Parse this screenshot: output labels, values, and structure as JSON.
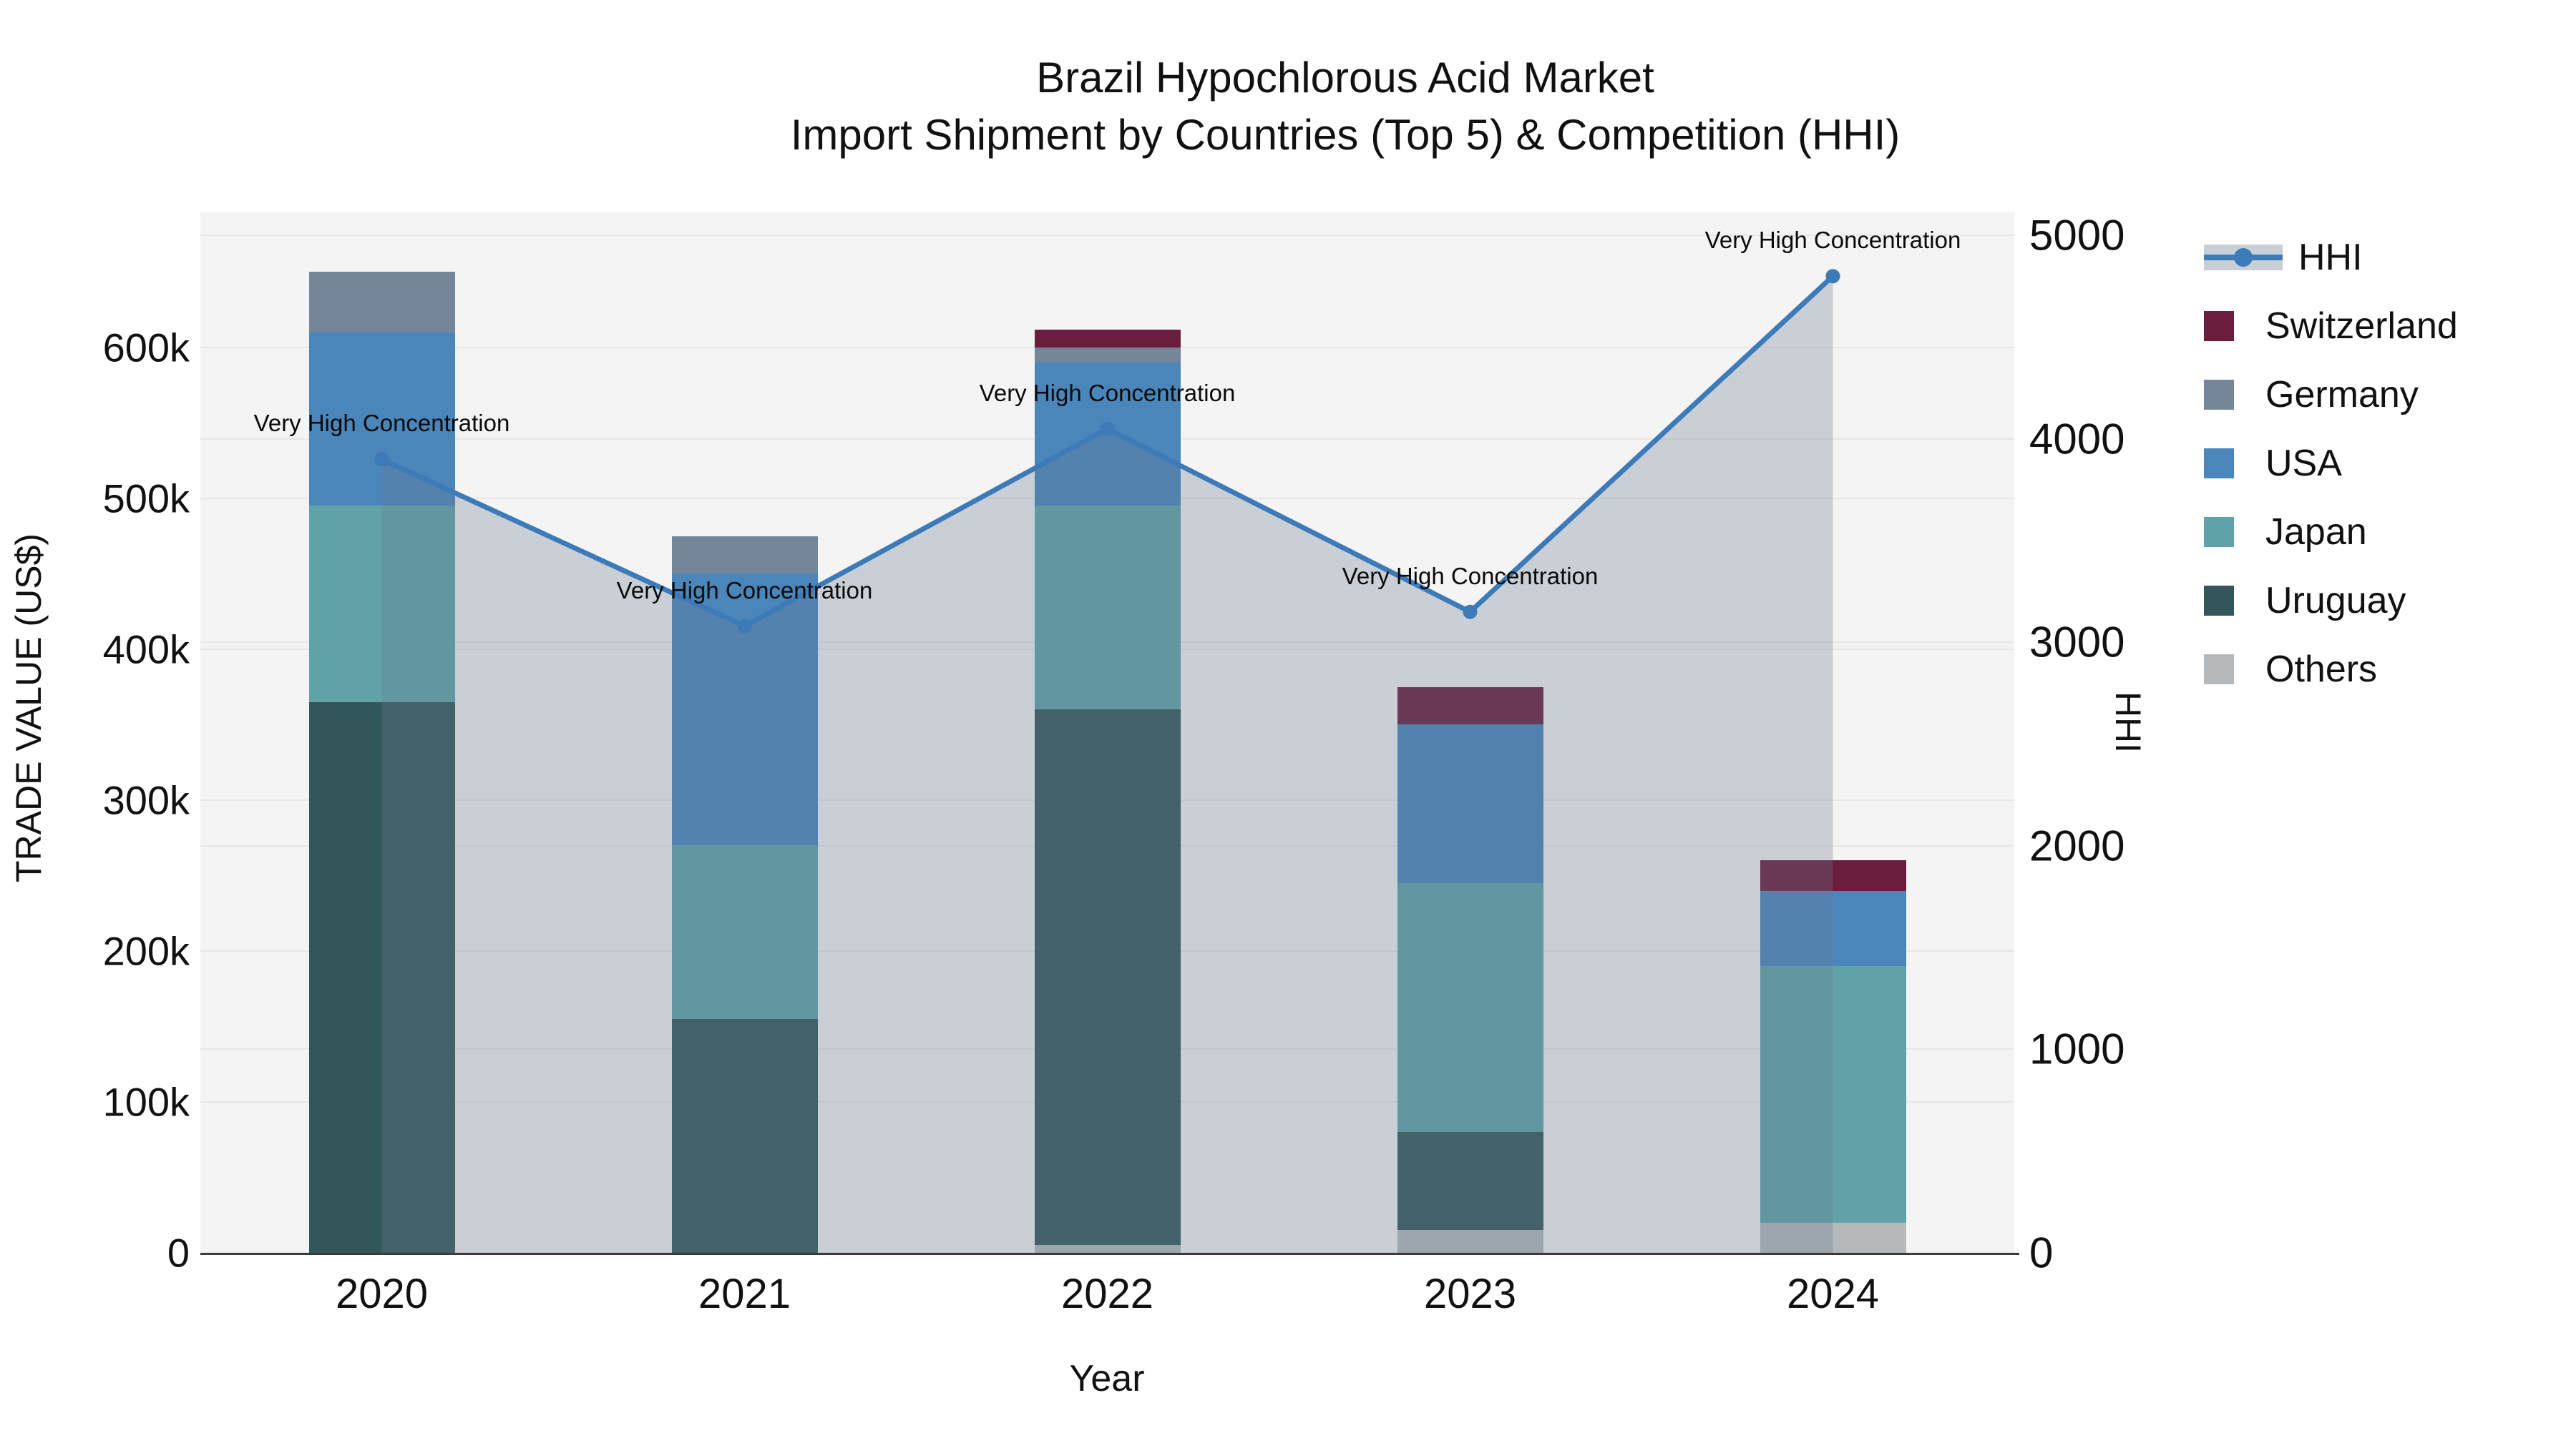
{
  "title": {
    "line1": "Brazil Hypochlorous Acid Market",
    "line2": "Import Shipment by Countries (Top 5) & Competition (HHI)"
  },
  "chart_data": {
    "type": "bar+line",
    "title": "Brazil Hypochlorous Acid Market — Import Shipment by Countries (Top 5) & Competition (HHI)",
    "categories": [
      "2020",
      "2021",
      "2022",
      "2023",
      "2024"
    ],
    "xlabel": "Year",
    "ylabel_left": "TRADE VALUE (US$)",
    "ylabel_right": "HHI",
    "y_left_ticks": [
      {
        "label": "0",
        "value": 0
      },
      {
        "label": "100k",
        "value": 100000
      },
      {
        "label": "200k",
        "value": 200000
      },
      {
        "label": "300k",
        "value": 300000
      },
      {
        "label": "400k",
        "value": 400000
      },
      {
        "label": "500k",
        "value": 500000
      },
      {
        "label": "600k",
        "value": 600000
      }
    ],
    "y_right_ticks": [
      {
        "label": "0",
        "value": 0
      },
      {
        "label": "1000",
        "value": 1000
      },
      {
        "label": "2000",
        "value": 2000
      },
      {
        "label": "3000",
        "value": 3000
      },
      {
        "label": "4000",
        "value": 4000
      },
      {
        "label": "5000",
        "value": 5000
      }
    ],
    "y_left_max": 690000,
    "y_right_max": 5117,
    "grid": true,
    "legend_position": "right",
    "stack_note": "series listed bottom-to-top of stack; legend shows line first then stack top-to-bottom",
    "series": [
      {
        "name": "Others",
        "color": "#b6b9bb",
        "values": [
          0,
          0,
          5000,
          15000,
          20000
        ]
      },
      {
        "name": "Uruguay",
        "color": "#33565a",
        "values": [
          365000,
          155000,
          355000,
          65000,
          0
        ]
      },
      {
        "name": "Japan",
        "color": "#61a2a8",
        "values": [
          130000,
          115000,
          135000,
          165000,
          170000
        ]
      },
      {
        "name": "USA",
        "color": "#4a86ba",
        "values": [
          115000,
          180000,
          95000,
          105000,
          50000
        ]
      },
      {
        "name": "Germany",
        "color": "#75869b",
        "values": [
          40000,
          25000,
          10000,
          0,
          0
        ]
      },
      {
        "name": "Switzerland",
        "color": "#6b1d3d",
        "values": [
          0,
          0,
          12000,
          25000,
          20000
        ]
      }
    ],
    "line": {
      "name": "HHI",
      "color": "#3c7ab8",
      "area_color": "rgba(104,121,142,0.30)",
      "legend_band_color": "#c9cfd7",
      "values": [
        3900,
        3080,
        4050,
        3150,
        4800
      ]
    },
    "annotations": [
      {
        "category": "2020",
        "text": "Very High Concentration"
      },
      {
        "category": "2021",
        "text": "Very High Concentration"
      },
      {
        "category": "2022",
        "text": "Very High Concentration"
      },
      {
        "category": "2023",
        "text": "Very High Concentration"
      },
      {
        "category": "2024",
        "text": "Very High Concentration"
      }
    ],
    "colors": {
      "plot_background": "#f4f4f4",
      "figure_background": "#ffffff",
      "gridline": "#e7e7e7",
      "axis_line": "#3b3b3b",
      "text": "#111111"
    }
  }
}
